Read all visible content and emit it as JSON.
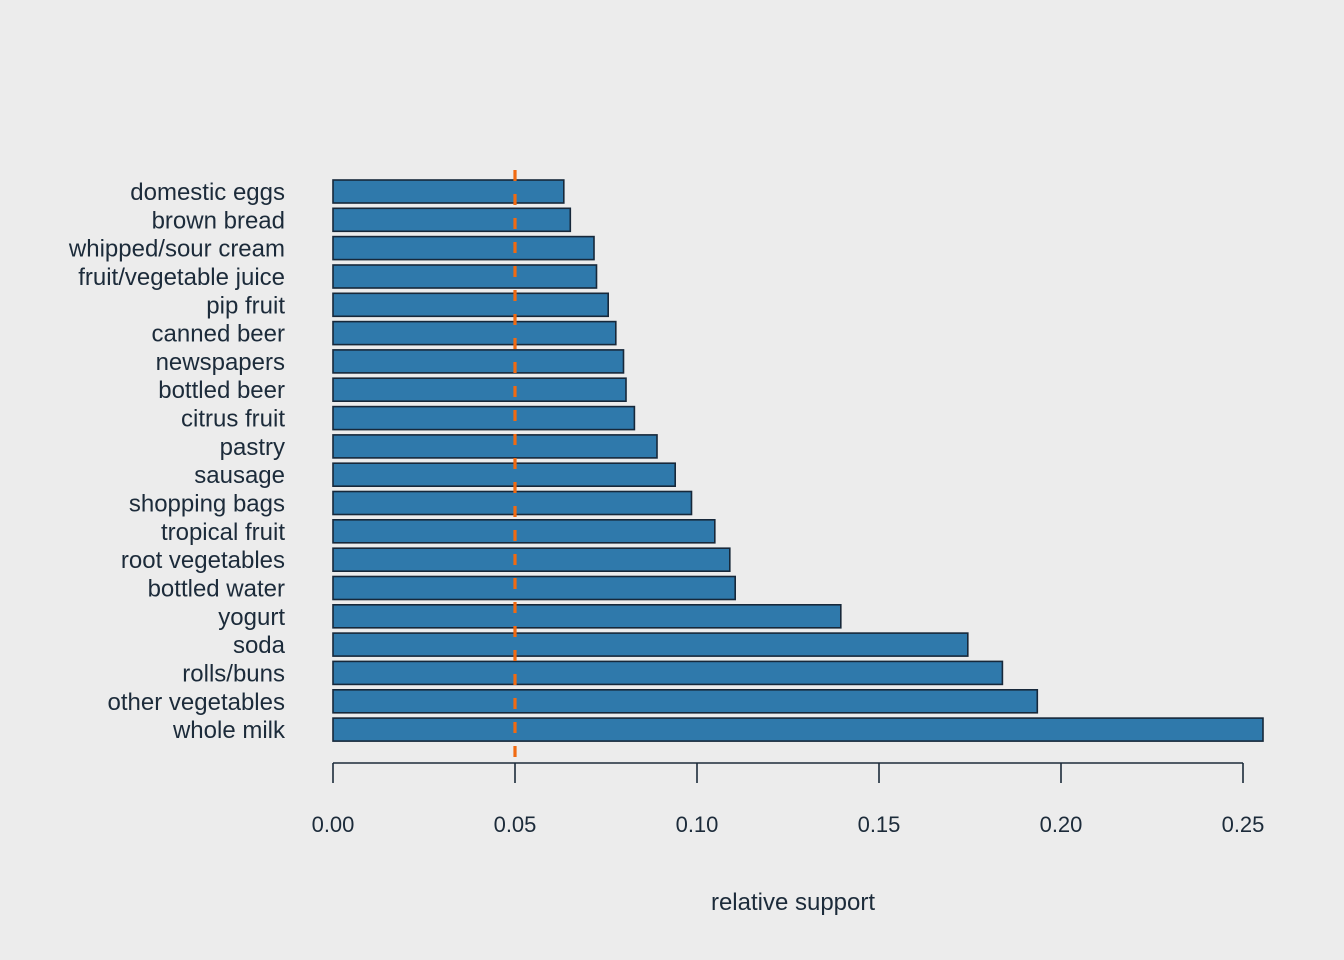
{
  "chart_data": {
    "type": "bar",
    "orientation": "horizontal",
    "title": "",
    "xlabel": "relative support",
    "ylabel": "",
    "categories": [
      "domestic eggs",
      "brown bread",
      "whipped/sour cream",
      "fruit/vegetable juice",
      "pip fruit",
      "canned beer",
      "newspapers",
      "bottled beer",
      "citrus fruit",
      "pastry",
      "sausage",
      "shopping bags",
      "tropical fruit",
      "root vegetables",
      "bottled water",
      "yogurt",
      "soda",
      "rolls/buns",
      "other vegetables",
      "whole milk"
    ],
    "values": [
      0.0634,
      0.0652,
      0.0717,
      0.0724,
      0.0756,
      0.0777,
      0.0798,
      0.0805,
      0.0828,
      0.089,
      0.094,
      0.0985,
      0.1049,
      0.109,
      0.1105,
      0.1395,
      0.1744,
      0.1839,
      0.1935,
      0.2555
    ],
    "xlim": [
      0,
      0.255
    ],
    "xticks": [
      "0.00",
      "0.05",
      "0.10",
      "0.15",
      "0.20",
      "0.25"
    ],
    "xtick_values": [
      0,
      0.05,
      0.1,
      0.15,
      0.2,
      0.25
    ],
    "reference_line": {
      "value": 0.05,
      "style": "dashed"
    },
    "grid": false,
    "legend": "none",
    "colors": {
      "bar_fill": "#2f79ab",
      "bar_edge": "#17283a",
      "reference_line": "#f06a12",
      "axis": "#1c2b3a",
      "text": "#1c2b3a",
      "background": "#ececec"
    }
  }
}
